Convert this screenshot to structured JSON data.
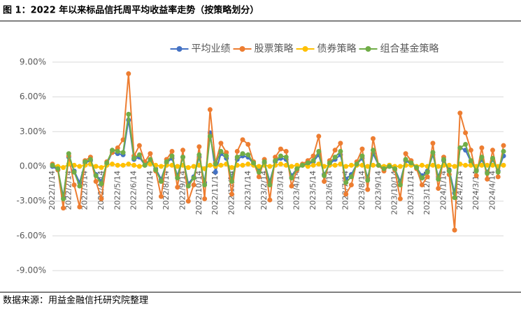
{
  "chart_data": {
    "type": "line",
    "title": "图 1：2022 年以来标品信托周平均收益率走势（按策略划分）",
    "source": "数据来源：用益金融信托研究院整理",
    "categories": [
      "2022/1/14",
      null,
      null,
      "2022/2/14",
      null,
      null,
      "2022/3/14",
      null,
      null,
      "2022/4/14",
      null,
      null,
      "2022/5/14",
      null,
      null,
      "2022/6/14",
      null,
      null,
      "2022/7/14",
      null,
      null,
      "2022/8/14",
      null,
      null,
      "2022/9/14",
      null,
      null,
      "2022/10/14",
      null,
      null,
      "2022/11/14",
      null,
      null,
      "2022/12/14",
      null,
      null,
      "2023/1/14",
      null,
      null,
      "2023/2/14",
      null,
      null,
      "2023/3/14",
      null,
      null,
      "2023/4/14",
      null,
      null,
      "2023/5/14",
      null,
      null,
      "2023/6/14",
      null,
      null,
      "2023/7/14",
      null,
      null,
      "2023/8/14",
      null,
      null,
      "2023/9/14",
      null,
      null,
      "2023/10/14",
      null,
      null,
      "2023/11/14",
      null,
      null,
      "2023/12/14",
      null,
      null,
      "2024/1/14",
      null,
      null,
      "2024/2/14",
      null,
      null,
      "2024/3/14",
      null,
      null,
      "2024/4/14",
      null,
      null
    ],
    "ylim": [
      -10.5,
      10.5
    ],
    "yticks": [
      {
        "value": -9,
        "label": "-9.00%"
      },
      {
        "value": -6,
        "label": "-6.00%"
      },
      {
        "value": -3,
        "label": "-3.00%"
      },
      {
        "value": 0,
        "label": "0.00%"
      },
      {
        "value": 3,
        "label": "3.00%"
      },
      {
        "value": 6,
        "label": "6.00%"
      },
      {
        "value": 9,
        "label": "9.00%"
      }
    ],
    "grid": true,
    "legend": "top",
    "series": [
      {
        "name": "平均业绩",
        "color": "#4472c4",
        "values": [
          0.0,
          -0.3,
          -2.6,
          0.8,
          -0.4,
          -1.4,
          0.3,
          0.5,
          -0.7,
          -1.3,
          0.2,
          1.2,
          1.1,
          1.0,
          4.0,
          0.6,
          0.8,
          0.1,
          0.5,
          -0.2,
          -1.1,
          0.3,
          0.7,
          -0.8,
          0.8,
          -1.5,
          -0.9,
          0.8,
          -1.4,
          2.9,
          -0.5,
          1.1,
          0.7,
          -1.1,
          0.6,
          0.9,
          0.8,
          0.2,
          -0.4,
          0.3,
          -1.3,
          0.4,
          0.7,
          0.6,
          -0.8,
          -0.2,
          0.1,
          0.2,
          0.4,
          1.0,
          -0.7,
          0.2,
          0.6,
          1.0,
          -1.1,
          -0.7,
          0.2,
          0.7,
          -1.0,
          1.1,
          0.1,
          -0.2,
          0.0,
          -0.2,
          -1.3,
          0.5,
          0.2,
          -0.1,
          -0.8,
          -0.4,
          1.0,
          -0.9,
          0.5,
          -0.3,
          -2.3,
          1.6,
          1.4,
          0.4,
          -0.3,
          0.6,
          -0.5,
          0.6,
          -0.4,
          0.9
        ]
      },
      {
        "name": "股票策略",
        "color": "#ed7d31",
        "values": [
          0.2,
          -0.3,
          -3.6,
          0.9,
          -1.6,
          -3.5,
          0.5,
          0.8,
          -1.3,
          -2.8,
          0.4,
          1.2,
          1.6,
          2.3,
          8.0,
          0.9,
          1.8,
          0.4,
          1.1,
          -0.4,
          -2.6,
          0.6,
          1.3,
          -1.8,
          1.4,
          -3.0,
          -1.6,
          1.7,
          -2.8,
          4.9,
          0.3,
          2.0,
          1.2,
          -2.4,
          1.3,
          2.3,
          1.9,
          0.4,
          -0.9,
          0.6,
          -2.9,
          0.8,
          1.5,
          1.3,
          -1.7,
          -0.3,
          0.2,
          0.5,
          0.9,
          2.6,
          -1.3,
          0.5,
          1.4,
          2.0,
          -2.4,
          -1.6,
          0.4,
          1.5,
          -2.0,
          2.4,
          0.1,
          -0.4,
          0.1,
          -0.3,
          -2.8,
          1.1,
          0.5,
          -0.2,
          -1.6,
          -0.9,
          2.0,
          -1.9,
          0.8,
          -0.7,
          -5.5,
          4.6,
          2.9,
          1.4,
          -0.8,
          1.6,
          -1.1,
          1.4,
          -0.9,
          1.8
        ]
      },
      {
        "name": "债券策略",
        "color": "#ffc000",
        "values": [
          0.1,
          0.0,
          -0.1,
          0.2,
          0.1,
          0.0,
          0.1,
          0.2,
          0.0,
          -0.1,
          0.1,
          0.2,
          0.1,
          0.1,
          0.2,
          0.1,
          0.0,
          0.1,
          0.2,
          0.1,
          0.0,
          0.1,
          0.1,
          0.0,
          0.1,
          -0.1,
          0.0,
          0.1,
          -0.2,
          0.1,
          0.0,
          0.1,
          0.2,
          -0.1,
          0.1,
          0.1,
          0.2,
          0.1,
          0.0,
          0.1,
          0.0,
          0.1,
          0.2,
          0.1,
          0.0,
          0.1,
          0.1,
          0.0,
          0.1,
          0.2,
          0.0,
          0.1,
          0.1,
          0.2,
          0.0,
          0.1,
          0.1,
          0.1,
          0.0,
          0.1,
          0.1,
          0.0,
          0.1,
          0.0,
          0.0,
          0.1,
          0.1,
          0.0,
          0.1,
          0.0,
          0.1,
          0.0,
          0.1,
          0.1,
          0.0,
          0.2,
          0.1,
          0.1,
          0.0,
          0.1,
          0.1,
          0.1,
          0.0,
          0.1
        ]
      },
      {
        "name": "组合基金策略",
        "color": "#70ad47",
        "values": [
          0.1,
          -0.2,
          -2.8,
          1.1,
          -0.5,
          -1.7,
          0.4,
          0.6,
          -0.8,
          -1.5,
          0.3,
          1.4,
          1.3,
          1.2,
          4.5,
          0.7,
          1.0,
          0.1,
          0.6,
          -0.3,
          -1.3,
          0.4,
          0.9,
          -1.0,
          0.8,
          -1.7,
          -1.0,
          1.0,
          -1.6,
          2.6,
          0.2,
          1.3,
          0.9,
          -1.3,
          0.8,
          1.1,
          1.0,
          0.3,
          -0.5,
          0.4,
          -1.6,
          0.5,
          0.9,
          0.8,
          -1.0,
          -0.2,
          0.1,
          0.3,
          0.5,
          1.3,
          -0.8,
          0.3,
          0.8,
          1.3,
          -1.4,
          -0.9,
          0.2,
          0.9,
          -1.2,
          1.4,
          0.1,
          -0.2,
          0.0,
          -0.2,
          -1.6,
          0.6,
          0.3,
          -0.1,
          -1.0,
          -0.5,
          1.2,
          -1.1,
          0.6,
          -0.4,
          -2.7,
          1.6,
          1.9,
          0.5,
          -0.4,
          0.8,
          -0.6,
          0.7,
          -0.5,
          1.3
        ]
      }
    ]
  }
}
